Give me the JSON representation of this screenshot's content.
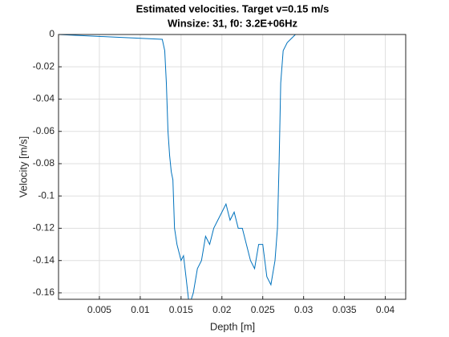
{
  "chart_data": {
    "type": "line",
    "title": "Estimated velocities. Target v=0.15 m/s",
    "subtitle": "Winsize: 31, f0: 3.2E+06Hz",
    "x_label": "Depth [m]",
    "y_label": "Velocity [m/s]",
    "x": [
      0,
      0.0127,
      0.013,
      0.0132,
      0.0134,
      0.0136,
      0.0138,
      0.014,
      0.0142,
      0.0145,
      0.015,
      0.0153,
      0.0156,
      0.016,
      0.0165,
      0.017,
      0.0175,
      0.018,
      0.0185,
      0.019,
      0.0195,
      0.02,
      0.0205,
      0.021,
      0.0215,
      0.022,
      0.0225,
      0.023,
      0.0235,
      0.024,
      0.0245,
      0.025,
      0.0255,
      0.026,
      0.0265,
      0.0268,
      0.027,
      0.0272,
      0.0275,
      0.028,
      0.029,
      0.0425
    ],
    "values": [
      0,
      -0.003,
      -0.01,
      -0.03,
      -0.06,
      -0.075,
      -0.085,
      -0.09,
      -0.12,
      -0.13,
      -0.14,
      -0.137,
      -0.15,
      -0.168,
      -0.16,
      -0.145,
      -0.14,
      -0.125,
      -0.13,
      -0.12,
      -0.115,
      -0.11,
      -0.105,
      -0.115,
      -0.11,
      -0.12,
      -0.12,
      -0.13,
      -0.14,
      -0.145,
      -0.13,
      -0.13,
      -0.15,
      -0.155,
      -0.14,
      -0.12,
      -0.08,
      -0.03,
      -0.01,
      -0.005,
      0,
      0
    ],
    "color": "#0072bd",
    "xlim": [
      0,
      0.0425
    ],
    "ylim": [
      -0.164,
      0
    ],
    "xticks": [
      0.005,
      0.01,
      0.015,
      0.02,
      0.025,
      0.03,
      0.035,
      0.04
    ],
    "yticks": [
      -0.16,
      -0.14,
      -0.12,
      -0.1,
      -0.08,
      -0.06,
      -0.04,
      -0.02,
      0
    ],
    "grid": true
  }
}
